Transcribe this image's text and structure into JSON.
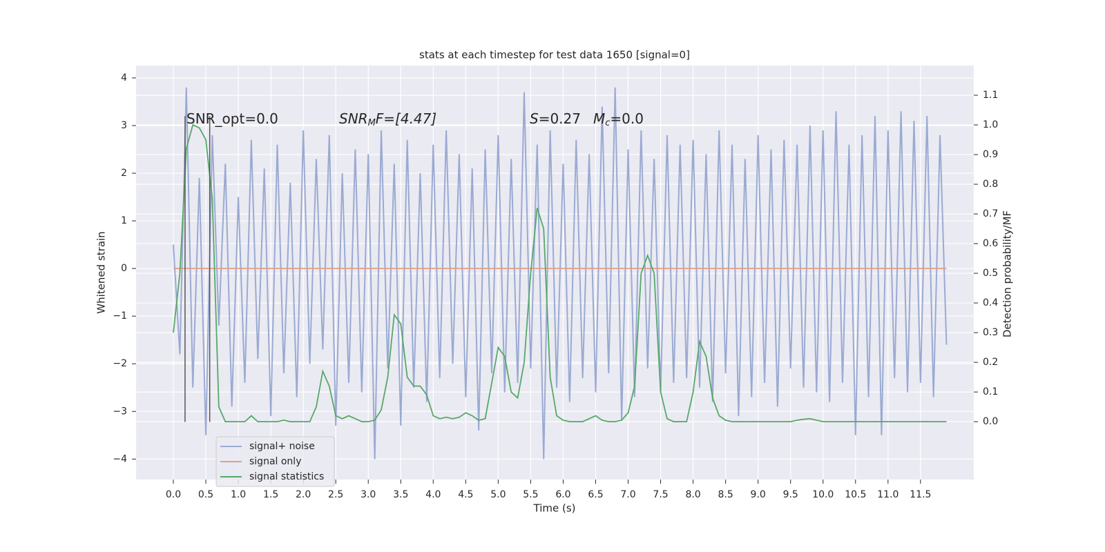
{
  "chart_data": {
    "type": "line",
    "title": "stats at each timestep for test data 1650 [signal=0]",
    "xlabel": "Time (s)",
    "ylabel": "Whitened strain",
    "y2label": "Detection probability/MF",
    "xlim": [
      -0.574,
      12.32
    ],
    "ylim": [
      -4.43,
      4.26
    ],
    "y2lim": [
      -0.195,
      1.2
    ],
    "xticks": [
      {
        "value": 0,
        "label": "0.0"
      },
      0.5,
      {
        "value": 1,
        "label": "1.0"
      },
      1.5,
      {
        "value": 2,
        "label": "2.0"
      },
      2.5,
      {
        "value": 3,
        "label": "3.0"
      },
      3.5,
      {
        "value": 4,
        "label": "4.0"
      },
      4.5,
      {
        "value": 5,
        "label": "5.0"
      },
      5.5,
      {
        "value": 6,
        "label": "6.0"
      },
      6.5,
      {
        "value": 7,
        "label": "7.0"
      },
      7.5,
      {
        "value": 8,
        "label": "8.0"
      },
      8.5,
      {
        "value": 9,
        "label": "9.0"
      },
      9.5,
      {
        "value": 10,
        "label": "10.0"
      },
      10.5,
      {
        "value": 11,
        "label": "11.0"
      },
      11.5
    ],
    "yticks": [
      {
        "value": -4,
        "label": "−4"
      },
      {
        "value": -3,
        "label": "−3"
      },
      {
        "value": -2,
        "label": "−2"
      },
      {
        "value": -1,
        "label": "−1"
      },
      0,
      1,
      2,
      3,
      4
    ],
    "y2ticks": [
      {
        "value": 0,
        "label": "0.0"
      },
      0.1,
      0.2,
      0.3,
      0.4,
      0.5,
      0.6,
      0.7,
      0.8,
      0.9,
      {
        "value": 1,
        "label": "1.0"
      },
      1.1
    ],
    "grid": true,
    "x": [
      0,
      0.1,
      0.2,
      0.3,
      0.4,
      0.5,
      0.6,
      0.7,
      0.8,
      0.9,
      1,
      1.1,
      1.2,
      1.3,
      1.4,
      1.5,
      1.6,
      1.7,
      1.8,
      1.9,
      2,
      2.1,
      2.2,
      2.3,
      2.4,
      2.5,
      2.6,
      2.7,
      2.8,
      2.9,
      3,
      3.1,
      3.2,
      3.3,
      3.4,
      3.5,
      3.6,
      3.7,
      3.8,
      3.9,
      4,
      4.1,
      4.2,
      4.3,
      4.4,
      4.5,
      4.6,
      4.7,
      4.8,
      4.9,
      5,
      5.1,
      5.2,
      5.3,
      5.4,
      5.5,
      5.6,
      5.7,
      5.8,
      5.9,
      6,
      6.1,
      6.2,
      6.3,
      6.4,
      6.5,
      6.6,
      6.7,
      6.8,
      6.9,
      7,
      7.1,
      7.2,
      7.3,
      7.4,
      7.5,
      7.6,
      7.7,
      7.8,
      7.9,
      8,
      8.1,
      8.2,
      8.3,
      8.4,
      8.5,
      8.6,
      8.7,
      8.8,
      8.9,
      9,
      9.1,
      9.2,
      9.3,
      9.4,
      9.5,
      9.6,
      9.7,
      9.8,
      9.9,
      10,
      10.1,
      10.2,
      10.3,
      10.4,
      10.5,
      10.6,
      10.7,
      10.8,
      10.9,
      11,
      11.1,
      11.2,
      11.3,
      11.4,
      11.5,
      11.6,
      11.7,
      11.8,
      11.9
    ],
    "series": [
      {
        "name": "signal+ noise",
        "color": "#9aaad2",
        "values": [
          0.5,
          -1.8,
          3.8,
          -2.5,
          1.9,
          -3.5,
          2.8,
          -1.2,
          2.2,
          -2.9,
          1.5,
          -2.4,
          2.7,
          -1.9,
          2.1,
          -3.1,
          2.6,
          -2.2,
          1.8,
          -2.7,
          2.9,
          -2.0,
          2.3,
          -1.7,
          2.8,
          -3.3,
          2.0,
          -2.4,
          2.5,
          -2.6,
          2.4,
          -4.0,
          2.9,
          -2.1,
          2.2,
          -3.3,
          2.7,
          -2.5,
          2.0,
          -2.8,
          2.6,
          -2.3,
          2.9,
          -2.0,
          2.4,
          -2.7,
          2.1,
          -3.4,
          2.5,
          -2.2,
          2.8,
          -2.6,
          2.3,
          -2.4,
          3.7,
          -2.1,
          2.6,
          -4.0,
          2.9,
          -2.5,
          2.2,
          -2.8,
          2.7,
          -2.3,
          2.4,
          -2.6,
          3.4,
          -2.2,
          3.8,
          -3.2,
          2.5,
          -2.7,
          2.9,
          -2.1,
          2.3,
          -2.6,
          2.8,
          -2.4,
          2.6,
          -2.3,
          2.7,
          -2.5,
          2.4,
          -2.8,
          2.9,
          -2.2,
          2.6,
          -3.1,
          2.3,
          -2.7,
          2.8,
          -2.4,
          2.5,
          -2.9,
          2.7,
          -2.1,
          2.6,
          -2.5,
          3.0,
          -2.6,
          2.9,
          -2.8,
          3.3,
          -2.4,
          2.6,
          -3.5,
          2.8,
          -2.7,
          3.2,
          -3.5,
          2.9,
          -2.3,
          3.3,
          -2.6,
          3.1,
          -2.4,
          3.2,
          -2.7,
          2.8,
          -1.6
        ]
      },
      {
        "name": "signal only",
        "color": "#e0a088",
        "values": [
          0,
          0,
          0,
          0,
          0,
          0,
          0,
          0,
          0,
          0,
          0,
          0,
          0,
          0,
          0,
          0,
          0,
          0,
          0,
          0,
          0,
          0,
          0,
          0,
          0,
          0,
          0,
          0,
          0,
          0,
          0,
          0,
          0,
          0,
          0,
          0,
          0,
          0,
          0,
          0,
          0,
          0,
          0,
          0,
          0,
          0,
          0,
          0,
          0,
          0,
          0,
          0,
          0,
          0,
          0,
          0,
          0,
          0,
          0,
          0,
          0,
          0,
          0,
          0,
          0,
          0,
          0,
          0,
          0,
          0,
          0,
          0,
          0,
          0,
          0,
          0,
          0,
          0,
          0,
          0,
          0,
          0,
          0,
          0,
          0,
          0,
          0,
          0,
          0,
          0,
          0,
          0,
          0,
          0,
          0,
          0,
          0,
          0,
          0,
          0,
          0,
          0,
          0,
          0,
          0,
          0,
          0,
          0,
          0,
          0,
          0,
          0,
          0,
          0,
          0,
          0,
          0,
          0,
          0,
          0
        ]
      },
      {
        "name": "signal statistics",
        "color": "#55a868",
        "axis": "y2",
        "values": [
          0.3,
          0.5,
          0.92,
          1.0,
          0.99,
          0.95,
          0.75,
          0.05,
          0,
          0,
          0,
          0,
          0.02,
          0,
          0,
          0,
          0,
          0.005,
          0,
          0,
          0,
          0,
          0.05,
          0.17,
          0.12,
          0.02,
          0.01,
          0.02,
          0.01,
          0,
          0,
          0.005,
          0.04,
          0.15,
          0.36,
          0.33,
          0.15,
          0.12,
          0.12,
          0.09,
          0.02,
          0.01,
          0.015,
          0.01,
          0.015,
          0.03,
          0.02,
          0.005,
          0.01,
          0.13,
          0.25,
          0.22,
          0.1,
          0.08,
          0.2,
          0.5,
          0.72,
          0.65,
          0.15,
          0.02,
          0.005,
          0,
          0,
          0,
          0.01,
          0.02,
          0.005,
          0,
          0,
          0.005,
          0.03,
          0.12,
          0.5,
          0.56,
          0.5,
          0.1,
          0.01,
          0,
          0,
          0,
          0.1,
          0.27,
          0.22,
          0.08,
          0.02,
          0.005,
          0,
          0,
          0,
          0,
          0,
          0,
          0,
          0,
          0,
          0,
          0.005,
          0.008,
          0.01,
          0.005,
          0,
          0,
          0,
          0,
          0,
          0,
          0,
          0,
          0,
          0,
          0,
          0,
          0,
          0,
          0,
          0,
          0,
          0,
          0,
          0
        ]
      }
    ],
    "vlines": {
      "x": [
        0.18,
        0.56
      ],
      "ymin": -3.22,
      "ymax": 3.2,
      "color": "#555555"
    },
    "annotations": [
      [
        "SNR_opt=0.0"
      ],
      [
        "SNR",
        "M",
        "F=[4.47]"
      ],
      [
        "S",
        "=0.27"
      ],
      [
        "M",
        "c",
        "=0.0"
      ]
    ],
    "legend": "lower left"
  }
}
